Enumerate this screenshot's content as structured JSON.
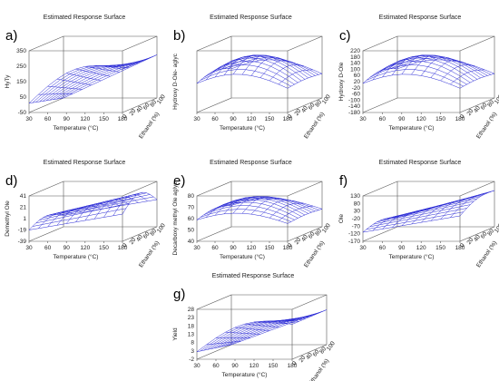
{
  "figure": {
    "surface_color": "#2b2bd6",
    "axis_color": "#555555"
  },
  "chart_data": [
    {
      "type": "surface",
      "panel_label": "a)",
      "title": "Estimated Response Surface",
      "xlabel": "Temperature (°C)",
      "ylabel": "Ethanol (%)",
      "zlabel": "HyTy",
      "x_ticks": [
        "30",
        "60",
        "90",
        "120",
        "150",
        "180"
      ],
      "y_ticks": [
        "0",
        "20",
        "40",
        "60",
        "80",
        "100"
      ],
      "z_ticks": [
        "350",
        "250",
        "150",
        "50",
        "-50"
      ],
      "xlim": [
        30,
        180
      ],
      "ylim": [
        0,
        100
      ],
      "zlim": [
        -50,
        350
      ],
      "shape": "saddle"
    },
    {
      "type": "surface",
      "panel_label": "b)",
      "title": "Estimated Response Surface",
      "xlabel": "Temperature (°C)",
      "ylabel": "Ethanol (%)",
      "zlabel": "Hydroxy D-Ole- aglyc",
      "x_ticks": [
        "30",
        "60",
        "90",
        "120",
        "150",
        "180"
      ],
      "y_ticks": [
        "0",
        "20",
        "40",
        "60",
        "80",
        "100"
      ],
      "z_ticks": [],
      "shape": "dome"
    },
    {
      "type": "surface",
      "panel_label": "c)",
      "title": "Estimated Response Surface",
      "xlabel": "Temperature (°C)",
      "ylabel": "Ethanol (%)",
      "zlabel": "Hydroxy D-Ole",
      "x_ticks": [
        "30",
        "60",
        "90",
        "120",
        "150",
        "180"
      ],
      "y_ticks": [
        "0",
        "20",
        "40",
        "60",
        "80",
        "100"
      ],
      "z_ticks": [
        "220",
        "180",
        "140",
        "100",
        "60",
        "20",
        "-20",
        "-60",
        "-100",
        "-140",
        "-180"
      ],
      "xlim": [
        30,
        180
      ],
      "ylim": [
        0,
        100
      ],
      "zlim": [
        -180,
        220
      ],
      "shape": "dome"
    },
    {
      "type": "surface",
      "panel_label": "d)",
      "title": "Estimated Response Surface",
      "xlabel": "Temperature (°C)",
      "ylabel": "Ethanol (%)",
      "zlabel": "Demethyl Ole",
      "x_ticks": [
        "30",
        "60",
        "90",
        "120",
        "150",
        "180"
      ],
      "y_ticks": [
        "0",
        "20",
        "40",
        "60",
        "80",
        "100"
      ],
      "z_ticks": [
        "41",
        "21",
        "1",
        "-19",
        "-39"
      ],
      "xlim": [
        30,
        180
      ],
      "ylim": [
        0,
        100
      ],
      "zlim": [
        -39,
        41
      ],
      "shape": "dome-tilt"
    },
    {
      "type": "surface",
      "panel_label": "e)",
      "title": "Estimated Response Surface",
      "xlabel": "Temperature (°C)",
      "ylabel": "Ethanol (%)",
      "zlabel": "Decarboxy methyl Ole aglyc",
      "x_ticks": [
        "30",
        "60",
        "90",
        "120",
        "150",
        "180"
      ],
      "y_ticks": [
        "0",
        "20",
        "40",
        "60",
        "80",
        "100"
      ],
      "z_ticks": [
        "80",
        "70",
        "60",
        "50",
        "40"
      ],
      "xlim": [
        30,
        180
      ],
      "ylim": [
        0,
        100
      ],
      "zlim": [
        40,
        80
      ],
      "shape": "dome"
    },
    {
      "type": "surface",
      "panel_label": "f)",
      "title": "Estimated Response Surface",
      "xlabel": "Temperature (°C)",
      "ylabel": "Ethanol (%)",
      "zlabel": "Ole",
      "x_ticks": [
        "30",
        "60",
        "90",
        "120",
        "150",
        "180"
      ],
      "y_ticks": [
        "0",
        "20",
        "40",
        "60",
        "80",
        "100"
      ],
      "z_ticks": [
        "130",
        "80",
        "30",
        "-20",
        "-70",
        "-120",
        "-170"
      ],
      "xlim": [
        30,
        180
      ],
      "ylim": [
        0,
        100
      ],
      "zlim": [
        -170,
        130
      ],
      "shape": "rising"
    },
    {
      "type": "surface",
      "panel_label": "g)",
      "title": "Estimated Response Surface",
      "xlabel": "Temperature (°C)",
      "ylabel": "Ethanol (%)",
      "zlabel": "Yield",
      "x_ticks": [
        "30",
        "60",
        "90",
        "120",
        "150",
        "180"
      ],
      "y_ticks": [
        "0",
        "20",
        "40",
        "60",
        "80",
        "100"
      ],
      "z_ticks": [
        "28",
        "23",
        "18",
        "13",
        "8",
        "3",
        "-2"
      ],
      "xlim": [
        30,
        180
      ],
      "ylim": [
        0,
        100
      ],
      "zlim": [
        -2,
        28
      ],
      "shape": "saddle"
    }
  ]
}
